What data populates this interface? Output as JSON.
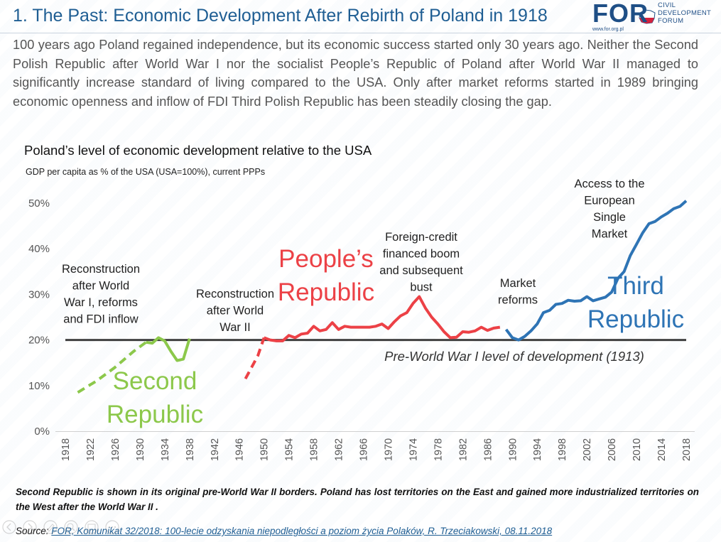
{
  "slide": {
    "title": "1. The Past: Economic Development After Rebirth of Poland in 1918",
    "intro": "100 years ago Poland regained independence, but its economic success started only 30 years ago. Neither the Second Polish Republic after World War I nor the socialist People’s Republic of Poland after World War II managed to significantly increase standard of living compared to the USA. Only after market reforms started in 1989 bringing economic openness and inflow of FDI Third Polish Republic has been steadily closing the gap.",
    "footnote": "Second Republic is shown in its original pre-World War II borders. Poland has lost territories on the East and gained more industrialized territories on the West after the World War II .",
    "source_label": "Source:",
    "source_text": "FOR, Komunikat 32/2018: 100-lecie odzyskania niepodległości a poziom życia Polaków, R. Trzeciakowski, 08.11.2018"
  },
  "logo": {
    "text": "FOR",
    "line1": "CIVIL",
    "line2": "DEVELOPMENT",
    "line3": "FORUM",
    "url": "www.for.org.pl",
    "color": "#1f4f86"
  },
  "chart_data": {
    "type": "line",
    "title": "Poland’s level of economic development relative to the USA",
    "subtitle": "GDP per capita as % of the USA (USA=100%), current PPPs",
    "xlabel": "",
    "ylabel": "",
    "xlim": [
      1918,
      2018
    ],
    "ylim": [
      0,
      50
    ],
    "yticks": [
      "0%",
      "10%",
      "20%",
      "30%",
      "40%",
      "50%"
    ],
    "ytick_values": [
      0,
      10,
      20,
      30,
      40,
      50
    ],
    "xticks": [
      "1918",
      "1922",
      "1926",
      "1930",
      "1934",
      "1938",
      "1942",
      "1946",
      "1950",
      "1954",
      "1958",
      "1962",
      "1966",
      "1970",
      "1974",
      "1978",
      "1982",
      "1986",
      "1990",
      "1994",
      "1998",
      "2002",
      "2006",
      "2010",
      "2014",
      "2018"
    ],
    "grid": false,
    "series": [
      {
        "name": "Second Republic",
        "color": "#8cc84b",
        "style": "dashed",
        "points": [
          [
            1920,
            8.5
          ],
          [
            1923,
            11
          ],
          [
            1926,
            14
          ],
          [
            1929,
            17.5
          ],
          [
            1931,
            19.5
          ]
        ]
      },
      {
        "name": "Second Republic",
        "color": "#8cc84b",
        "style": "solid",
        "points": [
          [
            1931,
            19.5
          ],
          [
            1932,
            19.3
          ],
          [
            1933,
            20.5
          ],
          [
            1934,
            19.8
          ],
          [
            1935,
            17.5
          ],
          [
            1936,
            15.5
          ],
          [
            1937,
            15.8
          ],
          [
            1938,
            20.3
          ]
        ]
      },
      {
        "name": "People’s Republic",
        "color": "#ec4146",
        "style": "dashed",
        "points": [
          [
            1947,
            11.5
          ],
          [
            1948,
            14
          ],
          [
            1949,
            16.5
          ],
          [
            1950,
            20.5
          ]
        ]
      },
      {
        "name": "People’s Republic",
        "color": "#ec4146",
        "style": "solid",
        "points": [
          [
            1950,
            20.5
          ],
          [
            1951,
            20
          ],
          [
            1952,
            19.8
          ],
          [
            1953,
            19.8
          ],
          [
            1954,
            21
          ],
          [
            1955,
            20.5
          ],
          [
            1956,
            21.3
          ],
          [
            1957,
            21.5
          ],
          [
            1958,
            23
          ],
          [
            1959,
            22
          ],
          [
            1960,
            22.3
          ],
          [
            1961,
            23.8
          ],
          [
            1962,
            22.3
          ],
          [
            1963,
            23
          ],
          [
            1964,
            22.8
          ],
          [
            1965,
            22.8
          ],
          [
            1966,
            22.8
          ],
          [
            1967,
            22.8
          ],
          [
            1968,
            23
          ],
          [
            1969,
            23.5
          ],
          [
            1970,
            22.5
          ],
          [
            1971,
            24
          ],
          [
            1972,
            25.3
          ],
          [
            1973,
            26
          ],
          [
            1974,
            28
          ],
          [
            1975,
            29.5
          ],
          [
            1976,
            27
          ],
          [
            1977,
            25
          ],
          [
            1978,
            23.5
          ],
          [
            1979,
            21.8
          ],
          [
            1980,
            20.5
          ],
          [
            1981,
            20.6
          ],
          [
            1982,
            21.8
          ],
          [
            1983,
            21.7
          ],
          [
            1984,
            22
          ],
          [
            1985,
            22.8
          ],
          [
            1986,
            22.1
          ],
          [
            1987,
            22.6
          ],
          [
            1988,
            22.8
          ]
        ]
      },
      {
        "name": "Third Republic",
        "color": "#2e74b5",
        "style": "solid",
        "points": [
          [
            1989,
            22.3
          ],
          [
            1990,
            20.5
          ],
          [
            1991,
            20
          ],
          [
            1992,
            20.8
          ],
          [
            1993,
            22
          ],
          [
            1994,
            23.5
          ],
          [
            1995,
            26
          ],
          [
            1996,
            26.5
          ],
          [
            1997,
            27.8
          ],
          [
            1998,
            28
          ],
          [
            1999,
            28.7
          ],
          [
            2000,
            28.5
          ],
          [
            2001,
            28.6
          ],
          [
            2002,
            29.5
          ],
          [
            2003,
            28.6
          ],
          [
            2004,
            29
          ],
          [
            2005,
            29.4
          ],
          [
            2006,
            30.5
          ],
          [
            2007,
            33.5
          ],
          [
            2008,
            35
          ],
          [
            2009,
            38.5
          ],
          [
            2010,
            41
          ],
          [
            2011,
            43.5
          ],
          [
            2012,
            45.5
          ],
          [
            2013,
            46
          ],
          [
            2014,
            47
          ],
          [
            2015,
            47.8
          ],
          [
            2016,
            48.8
          ],
          [
            2017,
            49.3
          ],
          [
            2018,
            50.5
          ]
        ]
      }
    ],
    "reference_line": {
      "value": 20,
      "label": "Pre-World War I level of development (1913)",
      "color": "#404040"
    },
    "annotations": [
      {
        "text": [
          "Reconstruction",
          "after World",
          "War I, reforms",
          "and FDI inflow"
        ],
        "color": "#222222"
      },
      {
        "text": [
          "Reconstruction",
          "after World",
          "War II"
        ],
        "color": "#222222"
      },
      {
        "text": [
          "Foreign-credit",
          "financed boom",
          "and subsequent",
          "bust"
        ],
        "color": "#222222"
      },
      {
        "text": [
          "Market",
          "reforms"
        ],
        "color": "#222222"
      },
      {
        "text": [
          "Access to the",
          "European",
          "Single",
          "Market"
        ],
        "color": "#222222"
      }
    ],
    "series_labels": [
      {
        "text": [
          "Second",
          "Republic"
        ],
        "color": "#8cc84b"
      },
      {
        "text": [
          "People’s",
          "Republic"
        ],
        "color": "#ec4146"
      },
      {
        "text": [
          "Third",
          "Republic"
        ],
        "color": "#2e74b5"
      }
    ]
  }
}
